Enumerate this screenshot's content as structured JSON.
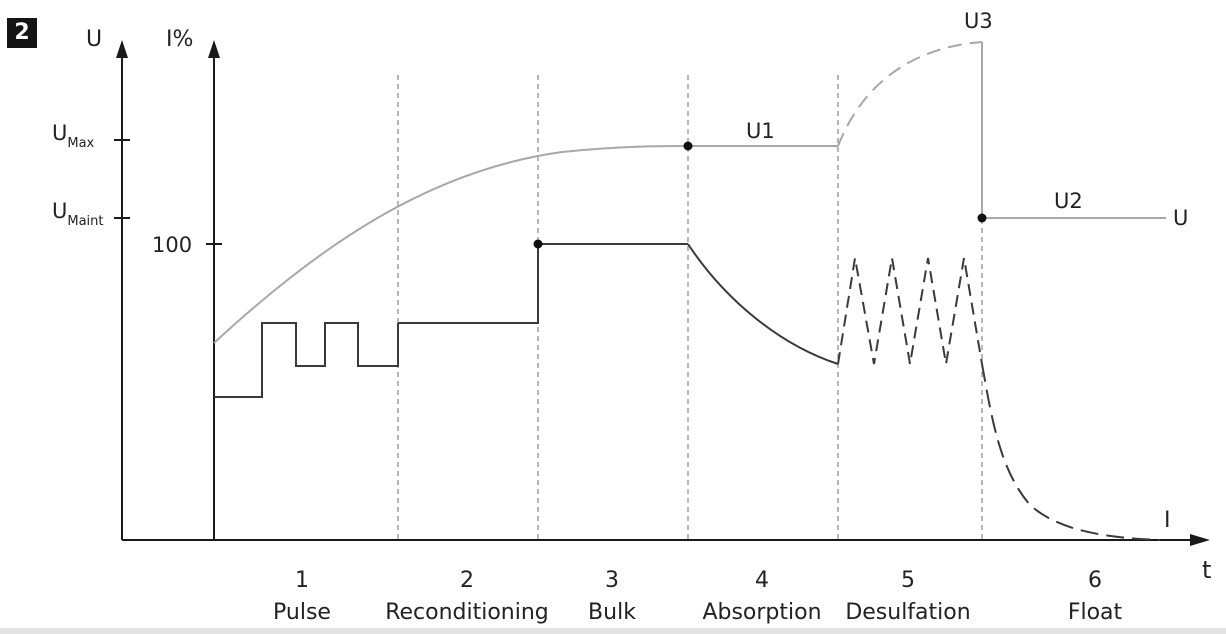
{
  "figure_number": "2",
  "axes": {
    "u_axis_label": "U",
    "i_axis_label": "I%",
    "time_axis_label": "t",
    "u_max_label": {
      "main": "U",
      "sub": "Max"
    },
    "u_maint_label": {
      "main": "U",
      "sub": "Maint"
    },
    "current_100_label": "100"
  },
  "stages": [
    {
      "number": "1",
      "name": "Pulse"
    },
    {
      "number": "2",
      "name": "Reconditioning"
    },
    {
      "number": "3",
      "name": "Bulk"
    },
    {
      "number": "4",
      "name": "Absorption"
    },
    {
      "number": "5",
      "name": "Desulfation"
    },
    {
      "number": "6",
      "name": "Float"
    }
  ],
  "curve_labels": {
    "u1": "U1",
    "u2": "U2",
    "u3": "U3",
    "voltage_end": "U",
    "current_end": "I"
  },
  "colors": {
    "voltage_curve": "#a8a8a8",
    "current_curve": "#3a3a3a",
    "axis": "#1a1a1a",
    "divider": "#888888"
  }
}
